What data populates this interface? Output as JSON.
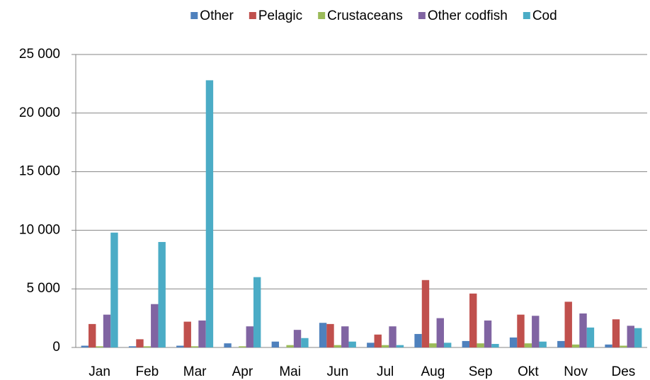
{
  "chart_data": {
    "type": "bar",
    "categories": [
      "Jan",
      "Feb",
      "Mar",
      "Apr",
      "Mai",
      "Jun",
      "Jul",
      "Aug",
      "Sep",
      "Okt",
      "Nov",
      "Des"
    ],
    "series": [
      {
        "name": "Other",
        "color": "#4f81bd",
        "values": [
          150,
          100,
          150,
          350,
          500,
          2100,
          400,
          1150,
          550,
          850,
          550,
          250
        ]
      },
      {
        "name": "Pelagic",
        "color": "#c0504d",
        "values": [
          2000,
          700,
          2200,
          0,
          0,
          2000,
          1100,
          5750,
          4600,
          2800,
          3900,
          2400
        ]
      },
      {
        "name": "Crustaceans",
        "color": "#9bbb59",
        "values": [
          100,
          100,
          100,
          100,
          200,
          200,
          200,
          350,
          350,
          350,
          250,
          150
        ]
      },
      {
        "name": "Other codfish",
        "color": "#8064a2",
        "values": [
          2800,
          3700,
          2300,
          1800,
          1500,
          1800,
          1800,
          2500,
          2300,
          2700,
          2900,
          1850
        ]
      },
      {
        "name": "Cod",
        "color": "#4bacc6",
        "values": [
          9800,
          9000,
          22800,
          6000,
          800,
          500,
          200,
          400,
          300,
          500,
          1700,
          1650
        ]
      }
    ],
    "ylim": [
      0,
      25000
    ],
    "yticks": [
      0,
      {
        "value": 5000,
        "label": "5 000"
      },
      {
        "value": 10000,
        "label": "10 000"
      },
      {
        "value": 15000,
        "label": "15 000"
      },
      {
        "value": 20000,
        "label": "20 000"
      },
      {
        "value": 25000,
        "label": "25 000"
      }
    ],
    "grid": true,
    "legend": "top"
  }
}
